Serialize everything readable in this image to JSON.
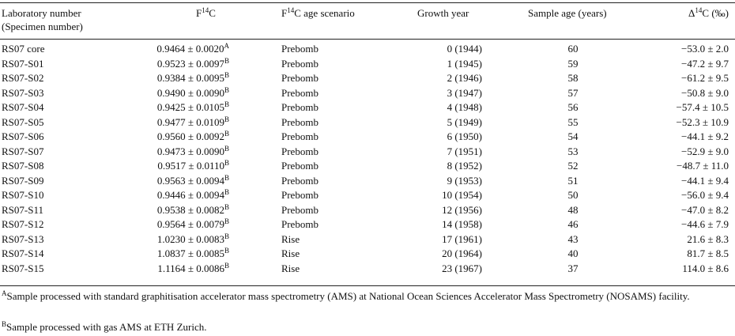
{
  "headers": {
    "lab_line1": "Laboratory number",
    "lab_line2": "(Specimen number)",
    "f14c_prefix": "F",
    "f14c_sup": "14",
    "f14c_suffix": "C",
    "scenario_prefix": "F",
    "scenario_sup": "14",
    "scenario_suffix": "C age scenario",
    "growth_year": "Growth year",
    "sample_age": "Sample age (years)",
    "delta_prefix": "Δ",
    "delta_sup": "14",
    "delta_suffix": "C (‰)"
  },
  "rows": [
    {
      "lab": "RS07 core",
      "f14c": "0.9464 ± 0.0020",
      "note": "A",
      "scenario": "Prebomb",
      "year": "0 (1944)",
      "age": "60",
      "delta": "−53.0 ± 2.0"
    },
    {
      "lab": "RS07-S01",
      "f14c": "0.9523 ± 0.0097",
      "note": "B",
      "scenario": "Prebomb",
      "year": "1 (1945)",
      "age": "59",
      "delta": "−47.2 ± 9.7"
    },
    {
      "lab": "RS07-S02",
      "f14c": "0.9384 ± 0.0095",
      "note": "B",
      "scenario": "Prebomb",
      "year": "2 (1946)",
      "age": "58",
      "delta": "−61.2 ± 9.5"
    },
    {
      "lab": "RS07-S03",
      "f14c": "0.9490 ± 0.0090",
      "note": "B",
      "scenario": "Prebomb",
      "year": "3 (1947)",
      "age": "57",
      "delta": "−50.8 ± 9.0"
    },
    {
      "lab": "RS07-S04",
      "f14c": "0.9425 ± 0.0105",
      "note": "B",
      "scenario": "Prebomb",
      "year": "4 (1948)",
      "age": "56",
      "delta": "−57.4 ± 10.5"
    },
    {
      "lab": "RS07-S05",
      "f14c": "0.9477 ± 0.0109",
      "note": "B",
      "scenario": "Prebomb",
      "year": "5 (1949)",
      "age": "55",
      "delta": "−52.3 ± 10.9"
    },
    {
      "lab": "RS07-S06",
      "f14c": "0.9560 ± 0.0092",
      "note": "B",
      "scenario": "Prebomb",
      "year": "6 (1950)",
      "age": "54",
      "delta": "−44.1 ± 9.2"
    },
    {
      "lab": "RS07-S07",
      "f14c": "0.9473 ± 0.0090",
      "note": "B",
      "scenario": "Prebomb",
      "year": "7 (1951)",
      "age": "53",
      "delta": "−52.9 ± 9.0"
    },
    {
      "lab": "RS07-S08",
      "f14c": "0.9517 ± 0.0110",
      "note": "B",
      "scenario": "Prebomb",
      "year": "8 (1952)",
      "age": "52",
      "delta": "−48.7 ± 11.0"
    },
    {
      "lab": "RS07-S09",
      "f14c": "0.9563 ± 0.0094",
      "note": "B",
      "scenario": "Prebomb",
      "year": "9 (1953)",
      "age": "51",
      "delta": "−44.1 ± 9.4"
    },
    {
      "lab": "RS07-S10",
      "f14c": "0.9446 ± 0.0094",
      "note": "B",
      "scenario": "Prebomb",
      "year": "10 (1954)",
      "age": "50",
      "delta": "−56.0 ± 9.4"
    },
    {
      "lab": "RS07-S11",
      "f14c": "0.9538 ± 0.0082",
      "note": "B",
      "scenario": "Prebomb",
      "year": "12 (1956)",
      "age": "48",
      "delta": "−47.0 ± 8.2"
    },
    {
      "lab": "RS07-S12",
      "f14c": "0.9564 ± 0.0079",
      "note": "B",
      "scenario": "Prebomb",
      "year": "14 (1958)",
      "age": "46",
      "delta": "−44.6 ± 7.9"
    },
    {
      "lab": "RS07-S13",
      "f14c": "1.0230 ± 0.0083",
      "note": "B",
      "scenario": "Rise",
      "year": "17 (1961)",
      "age": "43",
      "delta": "21.6 ± 8.3"
    },
    {
      "lab": "RS07-S14",
      "f14c": "1.0837 ± 0.0085",
      "note": "B",
      "scenario": "Rise",
      "year": "20 (1964)",
      "age": "40",
      "delta": "81.7 ± 8.5"
    },
    {
      "lab": "RS07-S15",
      "f14c": "1.1164 ± 0.0086",
      "note": "B",
      "scenario": "Rise",
      "year": "23 (1967)",
      "age": "37",
      "delta": "114.0 ± 8.6"
    }
  ],
  "footnotes": {
    "a_mark": "A",
    "a_text": "Sample processed with standard graphitisation accelerator mass spectrometry (AMS) at National Ocean Sciences Accelerator Mass Spectrometry (NOSAMS) facility.",
    "b_mark": "B",
    "b_text": "Sample processed with gas AMS at ETH Zurich."
  }
}
